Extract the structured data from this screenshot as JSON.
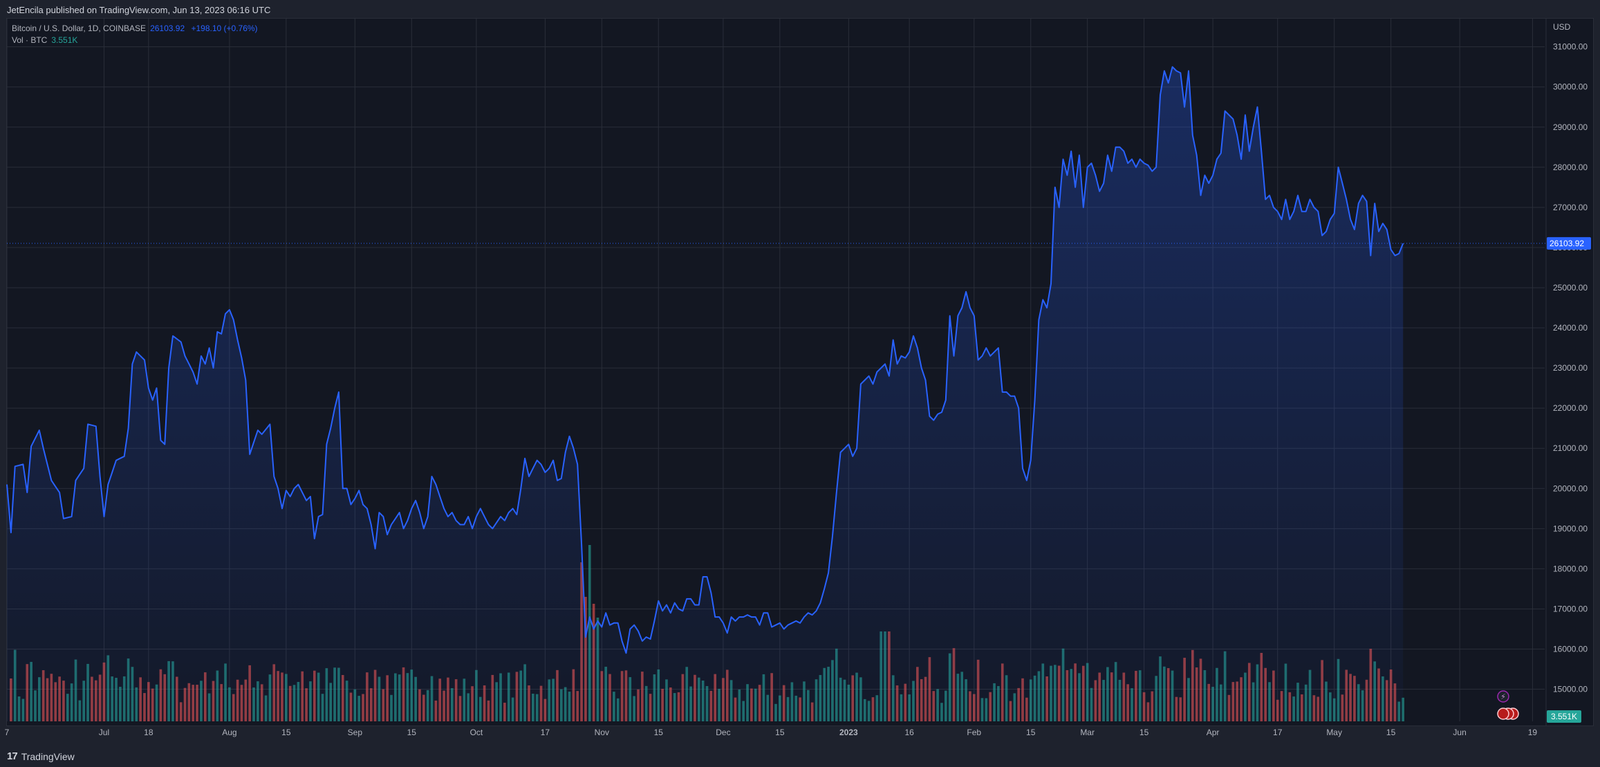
{
  "header": {
    "publisher": "JetEncila published on TradingView.com, Jun 13, 2023 06:16 UTC"
  },
  "legend": {
    "symbol": "Bitcoin / U.S. Dollar, 1D, COINBASE",
    "last": "26103.92",
    "change": "+198.10 (+0.76%)",
    "vol_label": "Vol · BTC",
    "vol_value": "3.551K"
  },
  "footer": {
    "brand": "TradingView"
  },
  "colors": {
    "line": "#2962ff",
    "up": "#26a69a",
    "down": "#ef5350",
    "bg": "#131722"
  },
  "chart_data": {
    "type": "area",
    "currency": "USD",
    "y_ticks": [
      15000,
      16000,
      17000,
      18000,
      19000,
      20000,
      21000,
      22000,
      23000,
      24000,
      25000,
      26000,
      27000,
      28000,
      29000,
      30000,
      31000
    ],
    "ylim": [
      14200,
      31700
    ],
    "last_price_label": "26103.92",
    "last_volume_label": "3.551K",
    "x_ticks": [
      {
        "label": "7",
        "t": 0
      },
      {
        "label": "Jul",
        "t": 24
      },
      {
        "label": "18",
        "t": 35
      },
      {
        "label": "Aug",
        "t": 55
      },
      {
        "label": "15",
        "t": 69
      },
      {
        "label": "Sep",
        "t": 86
      },
      {
        "label": "15",
        "t": 100
      },
      {
        "label": "Oct",
        "t": 116
      },
      {
        "label": "17",
        "t": 133
      },
      {
        "label": "Nov",
        "t": 147
      },
      {
        "label": "15",
        "t": 161
      },
      {
        "label": "Dec",
        "t": 177
      },
      {
        "label": "15",
        "t": 191
      },
      {
        "label": "2023",
        "t": 208
      },
      {
        "label": "16",
        "t": 223
      },
      {
        "label": "Feb",
        "t": 239
      },
      {
        "label": "15",
        "t": 253
      },
      {
        "label": "Mar",
        "t": 267
      },
      {
        "label": "15",
        "t": 281
      },
      {
        "label": "Apr",
        "t": 298
      },
      {
        "label": "17",
        "t": 314
      },
      {
        "label": "May",
        "t": 328
      },
      {
        "label": "15",
        "t": 342
      },
      {
        "label": "Jun",
        "t": 359
      },
      {
        "label": "19",
        "t": 377
      }
    ],
    "t_range": [
      0,
      380
    ],
    "price_keyframes": [
      [
        0,
        20100
      ],
      [
        1,
        18900
      ],
      [
        2,
        20550
      ],
      [
        4,
        20600
      ],
      [
        5,
        19900
      ],
      [
        6,
        21050
      ],
      [
        8,
        21450
      ],
      [
        9,
        21000
      ],
      [
        10,
        20600
      ],
      [
        11,
        20200
      ],
      [
        13,
        19900
      ],
      [
        14,
        19250
      ],
      [
        16,
        19300
      ],
      [
        17,
        20200
      ],
      [
        19,
        20500
      ],
      [
        20,
        21600
      ],
      [
        22,
        21550
      ],
      [
        23,
        20300
      ],
      [
        24,
        19300
      ],
      [
        25,
        20100
      ],
      [
        27,
        20700
      ],
      [
        29,
        20800
      ],
      [
        30,
        21500
      ],
      [
        31,
        23100
      ],
      [
        32,
        23400
      ],
      [
        34,
        23200
      ],
      [
        35,
        22500
      ],
      [
        36,
        22200
      ],
      [
        37,
        22500
      ],
      [
        38,
        21200
      ],
      [
        39,
        21100
      ],
      [
        40,
        23000
      ],
      [
        41,
        23800
      ],
      [
        43,
        23650
      ],
      [
        44,
        23300
      ],
      [
        46,
        22900
      ],
      [
        47,
        22600
      ],
      [
        48,
        23300
      ],
      [
        49,
        23100
      ],
      [
        50,
        23500
      ],
      [
        51,
        23000
      ],
      [
        52,
        23900
      ],
      [
        53,
        23850
      ],
      [
        54,
        24350
      ],
      [
        55,
        24450
      ],
      [
        56,
        24200
      ],
      [
        57,
        23700
      ],
      [
        58,
        23250
      ],
      [
        59,
        22700
      ],
      [
        60,
        20850
      ],
      [
        62,
        21450
      ],
      [
        63,
        21350
      ],
      [
        65,
        21600
      ],
      [
        66,
        20300
      ],
      [
        67,
        20000
      ],
      [
        68,
        19500
      ],
      [
        69,
        19950
      ],
      [
        70,
        19800
      ],
      [
        71,
        20000
      ],
      [
        72,
        20100
      ],
      [
        73,
        19900
      ],
      [
        74,
        19700
      ],
      [
        75,
        19800
      ],
      [
        76,
        18750
      ],
      [
        77,
        19300
      ],
      [
        78,
        19350
      ],
      [
        79,
        21100
      ],
      [
        80,
        21500
      ],
      [
        81,
        22000
      ],
      [
        82,
        22400
      ],
      [
        83,
        20000
      ],
      [
        84,
        20000
      ],
      [
        85,
        19600
      ],
      [
        86,
        19750
      ],
      [
        87,
        19950
      ],
      [
        88,
        19600
      ],
      [
        89,
        19500
      ],
      [
        90,
        19100
      ],
      [
        91,
        18500
      ],
      [
        92,
        19400
      ],
      [
        93,
        19300
      ],
      [
        94,
        18850
      ],
      [
        95,
        19100
      ],
      [
        97,
        19400
      ],
      [
        98,
        19000
      ],
      [
        99,
        19200
      ],
      [
        100,
        19500
      ],
      [
        101,
        19700
      ],
      [
        102,
        19400
      ],
      [
        103,
        19000
      ],
      [
        104,
        19300
      ],
      [
        105,
        20300
      ],
      [
        106,
        20100
      ],
      [
        107,
        19800
      ],
      [
        108,
        19500
      ],
      [
        109,
        19300
      ],
      [
        110,
        19400
      ],
      [
        111,
        19200
      ],
      [
        112,
        19100
      ],
      [
        113,
        19100
      ],
      [
        114,
        19300
      ],
      [
        115,
        19000
      ],
      [
        116,
        19300
      ],
      [
        117,
        19500
      ],
      [
        118,
        19300
      ],
      [
        119,
        19100
      ],
      [
        120,
        19000
      ],
      [
        121,
        19150
      ],
      [
        122,
        19300
      ],
      [
        123,
        19200
      ],
      [
        124,
        19400
      ],
      [
        125,
        19500
      ],
      [
        126,
        19350
      ],
      [
        127,
        20000
      ],
      [
        128,
        20750
      ],
      [
        129,
        20300
      ],
      [
        130,
        20500
      ],
      [
        131,
        20700
      ],
      [
        132,
        20600
      ],
      [
        133,
        20400
      ],
      [
        134,
        20500
      ],
      [
        135,
        20700
      ],
      [
        136,
        20200
      ],
      [
        137,
        20250
      ],
      [
        138,
        20900
      ],
      [
        139,
        21300
      ],
      [
        140,
        21000
      ],
      [
        141,
        20600
      ],
      [
        142,
        18600
      ],
      [
        143,
        16300
      ],
      [
        144,
        16800
      ],
      [
        145,
        16500
      ],
      [
        146,
        16700
      ],
      [
        147,
        16550
      ],
      [
        148,
        16900
      ],
      [
        149,
        16600
      ],
      [
        150,
        16650
      ],
      [
        151,
        16650
      ],
      [
        152,
        16200
      ],
      [
        153,
        15900
      ],
      [
        154,
        16500
      ],
      [
        155,
        16600
      ],
      [
        156,
        16450
      ],
      [
        157,
        16200
      ],
      [
        158,
        16300
      ],
      [
        159,
        16250
      ],
      [
        160,
        16700
      ],
      [
        161,
        17200
      ],
      [
        162,
        16950
      ],
      [
        163,
        17100
      ],
      [
        164,
        16900
      ],
      [
        165,
        17150
      ],
      [
        166,
        17000
      ],
      [
        167,
        16950
      ],
      [
        168,
        17250
      ],
      [
        169,
        17250
      ],
      [
        170,
        17100
      ],
      [
        171,
        17100
      ],
      [
        172,
        17800
      ],
      [
        173,
        17800
      ],
      [
        174,
        17400
      ],
      [
        175,
        16800
      ],
      [
        176,
        16800
      ],
      [
        177,
        16650
      ],
      [
        178,
        16400
      ],
      [
        179,
        16800
      ],
      [
        180,
        16700
      ],
      [
        181,
        16800
      ],
      [
        182,
        16800
      ],
      [
        183,
        16850
      ],
      [
        184,
        16800
      ],
      [
        185,
        16800
      ],
      [
        186,
        16600
      ],
      [
        187,
        16900
      ],
      [
        188,
        16900
      ],
      [
        189,
        16550
      ],
      [
        190,
        16600
      ],
      [
        191,
        16650
      ],
      [
        192,
        16500
      ],
      [
        193,
        16600
      ],
      [
        194,
        16650
      ],
      [
        195,
        16700
      ],
      [
        196,
        16650
      ],
      [
        197,
        16800
      ],
      [
        198,
        16900
      ],
      [
        199,
        16850
      ],
      [
        200,
        16950
      ],
      [
        201,
        17150
      ],
      [
        202,
        17500
      ],
      [
        203,
        17900
      ],
      [
        204,
        18800
      ],
      [
        205,
        19900
      ],
      [
        206,
        20900
      ],
      [
        207,
        21000
      ],
      [
        208,
        21100
      ],
      [
        209,
        20800
      ],
      [
        210,
        21000
      ],
      [
        211,
        22600
      ],
      [
        212,
        22700
      ],
      [
        213,
        22800
      ],
      [
        214,
        22600
      ],
      [
        215,
        22900
      ],
      [
        216,
        23000
      ],
      [
        217,
        23100
      ],
      [
        218,
        22800
      ],
      [
        219,
        23700
      ],
      [
        220,
        23100
      ],
      [
        221,
        23300
      ],
      [
        222,
        23250
      ],
      [
        223,
        23400
      ],
      [
        224,
        23800
      ],
      [
        225,
        23500
      ],
      [
        226,
        23000
      ],
      [
        227,
        22700
      ],
      [
        228,
        21800
      ],
      [
        229,
        21700
      ],
      [
        230,
        21850
      ],
      [
        231,
        21900
      ],
      [
        232,
        22200
      ],
      [
        233,
        24300
      ],
      [
        234,
        23300
      ],
      [
        235,
        24300
      ],
      [
        236,
        24500
      ],
      [
        237,
        24900
      ],
      [
        238,
        24500
      ],
      [
        239,
        24300
      ],
      [
        240,
        23200
      ],
      [
        241,
        23300
      ],
      [
        242,
        23500
      ],
      [
        243,
        23300
      ],
      [
        244,
        23400
      ],
      [
        245,
        23500
      ],
      [
        246,
        22400
      ],
      [
        247,
        22400
      ],
      [
        248,
        22300
      ],
      [
        249,
        22300
      ],
      [
        250,
        22000
      ],
      [
        251,
        20500
      ],
      [
        252,
        20200
      ],
      [
        253,
        20700
      ],
      [
        254,
        22200
      ],
      [
        255,
        24200
      ],
      [
        256,
        24700
      ],
      [
        257,
        24500
      ],
      [
        258,
        25100
      ],
      [
        259,
        27500
      ],
      [
        260,
        27000
      ],
      [
        261,
        28200
      ],
      [
        262,
        27800
      ],
      [
        263,
        28400
      ],
      [
        264,
        27500
      ],
      [
        265,
        28300
      ],
      [
        266,
        27000
      ],
      [
        267,
        28000
      ],
      [
        268,
        28100
      ],
      [
        269,
        27800
      ],
      [
        270,
        27400
      ],
      [
        271,
        27600
      ],
      [
        272,
        28300
      ],
      [
        273,
        27900
      ],
      [
        274,
        28500
      ],
      [
        275,
        28500
      ],
      [
        276,
        28400
      ],
      [
        277,
        28100
      ],
      [
        278,
        28200
      ],
      [
        279,
        28000
      ],
      [
        280,
        28200
      ],
      [
        281,
        28100
      ],
      [
        282,
        28050
      ],
      [
        283,
        27900
      ],
      [
        284,
        28000
      ],
      [
        285,
        29800
      ],
      [
        286,
        30400
      ],
      [
        287,
        30100
      ],
      [
        288,
        30500
      ],
      [
        289,
        30400
      ],
      [
        290,
        30350
      ],
      [
        291,
        29500
      ],
      [
        292,
        30400
      ],
      [
        293,
        28800
      ],
      [
        294,
        28300
      ],
      [
        295,
        27300
      ],
      [
        296,
        27800
      ],
      [
        297,
        27600
      ],
      [
        298,
        27800
      ],
      [
        299,
        28200
      ],
      [
        300,
        28350
      ],
      [
        301,
        29400
      ],
      [
        302,
        29300
      ],
      [
        303,
        29200
      ],
      [
        304,
        28800
      ],
      [
        305,
        28200
      ],
      [
        306,
        29300
      ],
      [
        307,
        28400
      ],
      [
        308,
        29000
      ],
      [
        309,
        29500
      ],
      [
        310,
        28400
      ],
      [
        311,
        27200
      ],
      [
        312,
        27300
      ],
      [
        313,
        27000
      ],
      [
        314,
        26900
      ],
      [
        315,
        26700
      ],
      [
        316,
        27200
      ],
      [
        317,
        26700
      ],
      [
        318,
        26900
      ],
      [
        319,
        27300
      ],
      [
        320,
        26900
      ],
      [
        321,
        26900
      ],
      [
        322,
        27200
      ],
      [
        323,
        27000
      ],
      [
        324,
        26900
      ],
      [
        325,
        26300
      ],
      [
        326,
        26400
      ],
      [
        327,
        26700
      ],
      [
        328,
        26850
      ],
      [
        329,
        28000
      ],
      [
        330,
        27600
      ],
      [
        331,
        27200
      ],
      [
        332,
        26700
      ],
      [
        333,
        26450
      ],
      [
        334,
        27100
      ],
      [
        335,
        27300
      ],
      [
        336,
        27150
      ],
      [
        337,
        25800
      ],
      [
        338,
        27100
      ],
      [
        339,
        26400
      ],
      [
        340,
        26600
      ],
      [
        341,
        26450
      ],
      [
        342,
        25950
      ],
      [
        343,
        25800
      ],
      [
        344,
        25850
      ],
      [
        345,
        26104
      ]
    ],
    "volume_note": "volume pane: green = up day, red = down day; only last value labeled"
  }
}
